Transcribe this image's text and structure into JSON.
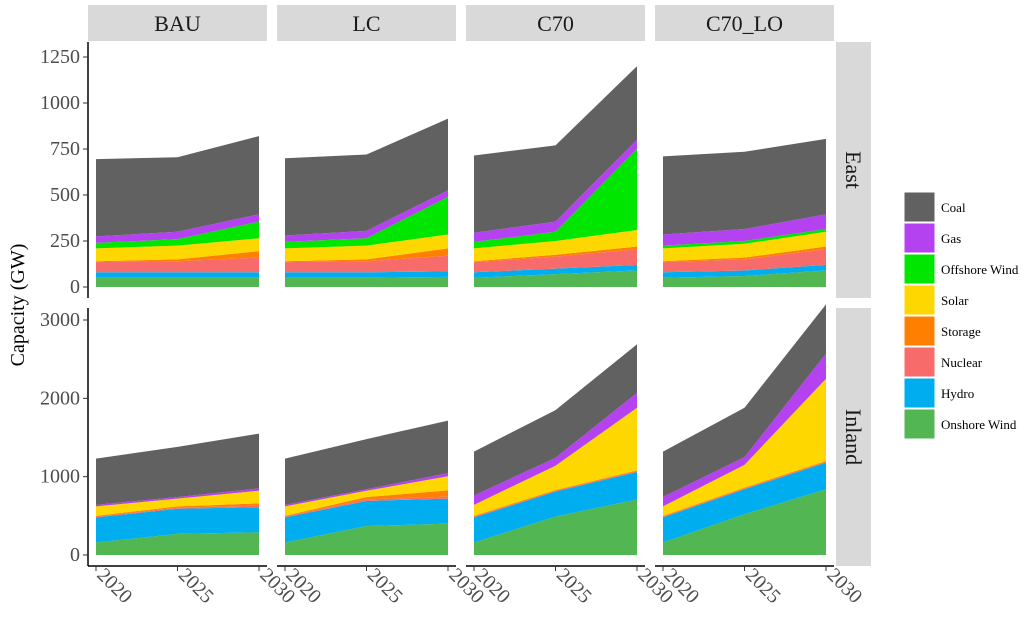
{
  "chart_data": {
    "type": "area",
    "stacked": true,
    "ylabel": "Capacity (GW)",
    "x": [
      2020,
      2025,
      2030
    ],
    "facet_columns": [
      "BAU",
      "LC",
      "C70",
      "C70_LO"
    ],
    "facet_rows": [
      "East",
      "Inland"
    ],
    "y_scales": "free per row",
    "row_axes": {
      "East": {
        "ylim": [
          0,
          1250
        ],
        "ticks": [
          0,
          250,
          500,
          750,
          1000,
          1250
        ]
      },
      "Inland": {
        "ylim": [
          0,
          3200
        ],
        "ticks": [
          0,
          1000,
          2000,
          3000
        ]
      }
    },
    "legend": {
      "position": "right",
      "entries": [
        "Coal",
        "Gas",
        "Offshore Wind",
        "Solar",
        "Storage",
        "Nuclear",
        "Hydro",
        "Onshore Wind"
      ]
    },
    "stack_order_bottom_to_top": [
      "Onshore Wind",
      "Hydro",
      "Nuclear",
      "Storage",
      "Solar",
      "Offshore Wind",
      "Gas",
      "Coal"
    ],
    "colors": {
      "Coal": "#616161",
      "Gas": "#b542f0",
      "Offshore Wind": "#00e600",
      "Solar": "#ffd700",
      "Storage": "#ff8000",
      "Nuclear": "#f76b6b",
      "Hydro": "#00aeef",
      "Onshore Wind": "#52b752"
    },
    "panels": [
      {
        "column": "BAU",
        "row": "East",
        "series": [
          {
            "name": "Onshore Wind",
            "values": [
              50,
              50,
              50
            ]
          },
          {
            "name": "Hydro",
            "values": [
              30,
              30,
              30
            ]
          },
          {
            "name": "Nuclear",
            "values": [
              55,
              60,
              80
            ]
          },
          {
            "name": "Storage",
            "values": [
              5,
              10,
              35
            ]
          },
          {
            "name": "Solar",
            "values": [
              70,
              75,
              70
            ]
          },
          {
            "name": "Offshore Wind",
            "values": [
              30,
              35,
              90
            ]
          },
          {
            "name": "Gas",
            "values": [
              35,
              40,
              40
            ]
          },
          {
            "name": "Coal",
            "values": [
              420,
              405,
              425
            ]
          }
        ]
      },
      {
        "column": "LC",
        "row": "East",
        "series": [
          {
            "name": "Onshore Wind",
            "values": [
              50,
              50,
              55
            ]
          },
          {
            "name": "Hydro",
            "values": [
              30,
              30,
              30
            ]
          },
          {
            "name": "Nuclear",
            "values": [
              55,
              60,
              85
            ]
          },
          {
            "name": "Storage",
            "values": [
              5,
              10,
              40
            ]
          },
          {
            "name": "Solar",
            "values": [
              70,
              75,
              75
            ]
          },
          {
            "name": "Offshore Wind",
            "values": [
              35,
              40,
              205
            ]
          },
          {
            "name": "Gas",
            "values": [
              35,
              40,
              35
            ]
          },
          {
            "name": "Coal",
            "values": [
              420,
              415,
              390
            ]
          }
        ]
      },
      {
        "column": "C70",
        "row": "East",
        "series": [
          {
            "name": "Onshore Wind",
            "values": [
              50,
              70,
              90
            ]
          },
          {
            "name": "Hydro",
            "values": [
              30,
              30,
              30
            ]
          },
          {
            "name": "Nuclear",
            "values": [
              55,
              65,
              85
            ]
          },
          {
            "name": "Storage",
            "values": [
              5,
              10,
              15
            ]
          },
          {
            "name": "Solar",
            "values": [
              70,
              75,
              90
            ]
          },
          {
            "name": "Offshore Wind",
            "values": [
              35,
              50,
              440
            ]
          },
          {
            "name": "Gas",
            "values": [
              50,
              55,
              50
            ]
          },
          {
            "name": "Coal",
            "values": [
              420,
              415,
              400
            ]
          }
        ]
      },
      {
        "column": "C70_LO",
        "row": "East",
        "series": [
          {
            "name": "Onshore Wind",
            "values": [
              50,
              60,
              90
            ]
          },
          {
            "name": "Hydro",
            "values": [
              30,
              30,
              30
            ]
          },
          {
            "name": "Nuclear",
            "values": [
              55,
              60,
              85
            ]
          },
          {
            "name": "Storage",
            "values": [
              5,
              10,
              15
            ]
          },
          {
            "name": "Solar",
            "values": [
              70,
              75,
              80
            ]
          },
          {
            "name": "Offshore Wind",
            "values": [
              15,
              15,
              15
            ]
          },
          {
            "name": "Gas",
            "values": [
              60,
              65,
              80
            ]
          },
          {
            "name": "Coal",
            "values": [
              425,
              420,
              410
            ]
          }
        ]
      },
      {
        "column": "BAU",
        "row": "Inland",
        "series": [
          {
            "name": "Onshore Wind",
            "values": [
              160,
              270,
              290
            ]
          },
          {
            "name": "Hydro",
            "values": [
              320,
              320,
              320
            ]
          },
          {
            "name": "Nuclear",
            "values": [
              10,
              15,
              20
            ]
          },
          {
            "name": "Storage",
            "values": [
              10,
              15,
              30
            ]
          },
          {
            "name": "Solar",
            "values": [
              120,
              100,
              160
            ]
          },
          {
            "name": "Offshore Wind",
            "values": [
              0,
              0,
              0
            ]
          },
          {
            "name": "Gas",
            "values": [
              20,
              20,
              30
            ]
          },
          {
            "name": "Coal",
            "values": [
              590,
              640,
              700
            ]
          }
        ]
      },
      {
        "column": "LC",
        "row": "Inland",
        "series": [
          {
            "name": "Onshore Wind",
            "values": [
              160,
              370,
              400
            ]
          },
          {
            "name": "Hydro",
            "values": [
              320,
              320,
              320
            ]
          },
          {
            "name": "Nuclear",
            "values": [
              10,
              20,
              25
            ]
          },
          {
            "name": "Storage",
            "values": [
              10,
              30,
              80
            ]
          },
          {
            "name": "Solar",
            "values": [
              120,
              80,
              180
            ]
          },
          {
            "name": "Offshore Wind",
            "values": [
              0,
              0,
              0
            ]
          },
          {
            "name": "Gas",
            "values": [
              20,
              20,
              40
            ]
          },
          {
            "name": "Coal",
            "values": [
              590,
              640,
              670
            ]
          }
        ]
      },
      {
        "column": "C70",
        "row": "Inland",
        "series": [
          {
            "name": "Onshore Wind",
            "values": [
              160,
              490,
              710
            ]
          },
          {
            "name": "Hydro",
            "values": [
              320,
              320,
              350
            ]
          },
          {
            "name": "Nuclear",
            "values": [
              10,
              10,
              10
            ]
          },
          {
            "name": "Storage",
            "values": [
              10,
              10,
              10
            ]
          },
          {
            "name": "Solar",
            "values": [
              140,
              310,
              800
            ]
          },
          {
            "name": "Offshore Wind",
            "values": [
              0,
              0,
              0
            ]
          },
          {
            "name": "Gas",
            "values": [
              120,
              100,
              190
            ]
          },
          {
            "name": "Coal",
            "values": [
              560,
              610,
              620
            ]
          }
        ]
      },
      {
        "column": "C70_LO",
        "row": "Inland",
        "series": [
          {
            "name": "Onshore Wind",
            "values": [
              160,
              520,
              840
            ]
          },
          {
            "name": "Hydro",
            "values": [
              320,
              320,
              340
            ]
          },
          {
            "name": "Nuclear",
            "values": [
              10,
              10,
              10
            ]
          },
          {
            "name": "Storage",
            "values": [
              10,
              10,
              10
            ]
          },
          {
            "name": "Solar",
            "values": [
              120,
              290,
              1050
            ]
          },
          {
            "name": "Offshore Wind",
            "values": [
              0,
              0,
              0
            ]
          },
          {
            "name": "Gas",
            "values": [
              120,
              100,
              320
            ]
          },
          {
            "name": "Coal",
            "values": [
              580,
              630,
              630
            ]
          }
        ]
      }
    ]
  }
}
